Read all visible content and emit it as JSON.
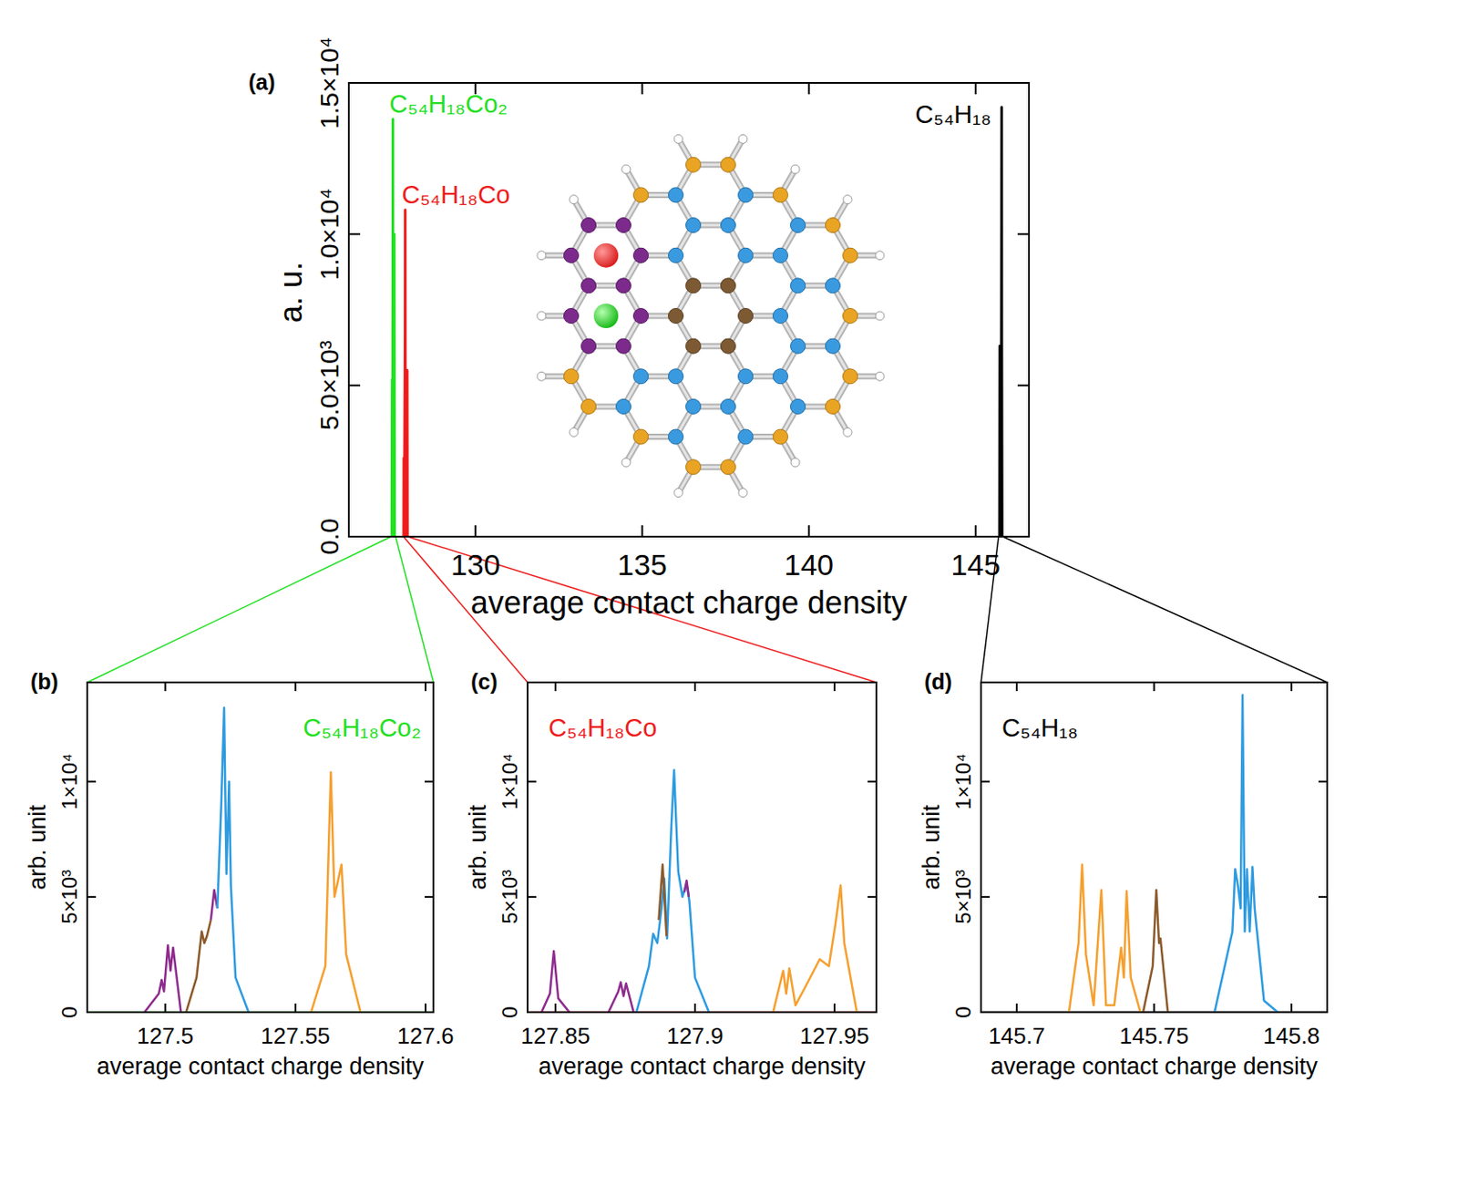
{
  "chart_data": [
    {
      "type": "line",
      "label": "(a)",
      "xlabel": "average contact charge density",
      "ylabel": "a. u.",
      "xlim": [
        126.2,
        146.6
      ],
      "ylim": [
        0,
        15000
      ],
      "xticks": [
        130,
        135,
        140,
        145
      ],
      "yticks": [
        {
          "value": 0,
          "label": "0.0"
        },
        {
          "value": 5000,
          "label": "5.0×10³"
        },
        {
          "value": 10000,
          "label": "1.0×10⁴"
        },
        {
          "value": 15000,
          "label": "1.5×10⁴"
        }
      ],
      "series": [
        {
          "name": "C₅₄H₁₈Co₂",
          "color": "#22e022",
          "x": [
            127.49,
            127.5,
            127.51,
            127.515,
            127.52,
            127.5226,
            127.53,
            127.556,
            127.5636,
            127.5677,
            127.575
          ],
          "values": [
            0,
            5200,
            1000,
            5000,
            9000,
            13800,
            500,
            0,
            10000,
            6000,
            0
          ]
        },
        {
          "name": "C₅₄H₁₈Co",
          "color": "#ee1c1c",
          "x": [
            127.845,
            127.8494,
            127.86,
            127.8884,
            127.8925,
            127.897,
            127.91,
            127.945,
            127.9522,
            127.96
          ],
          "values": [
            0,
            2600,
            0,
            6700,
            10800,
            5500,
            0,
            2000,
            5500,
            0
          ]
        },
        {
          "name": "C₅₄H₁₈",
          "color": "#000000",
          "x": [
            145.715,
            145.7238,
            145.74,
            145.76,
            145.7822,
            145.785,
            145.795
          ],
          "values": [
            0,
            6300,
            5000,
            0,
            14200,
            6500,
            0
          ]
        }
      ]
    },
    {
      "type": "line",
      "label": "(b)",
      "title": "C₅₄H₁₈Co₂",
      "xlabel": "average contact charge density",
      "ylabel": "arb. unit",
      "xlim": [
        127.47,
        127.603
      ],
      "ylim": [
        0,
        14300
      ],
      "xticks": [
        127.5,
        127.55,
        127.6
      ],
      "yticks": [
        0,
        {
          "value": 5000,
          "label": "5×10³"
        },
        {
          "value": 10000,
          "label": "1×10⁴"
        }
      ],
      "series": [
        {
          "color": "#22e022",
          "x": [
            127.47,
            127.603
          ],
          "values": [
            0,
            0
          ]
        },
        {
          "color": "#8e2c8e",
          "x": [
            127.492,
            127.4975,
            127.4986,
            127.4995,
            127.501,
            127.502,
            127.503,
            127.506
          ],
          "values": [
            0,
            800,
            1400,
            900,
            2900,
            1800,
            2800,
            0
          ]
        },
        {
          "color": "#8b5a2b",
          "x": [
            127.508,
            127.512,
            127.514,
            127.515,
            127.516,
            127.5175
          ],
          "values": [
            0,
            1500,
            3500,
            3000,
            3300,
            4000
          ]
        },
        {
          "color": "#8e2c8e",
          "x": [
            127.5175,
            127.5188,
            127.52
          ],
          "values": [
            4000,
            5300,
            4500
          ]
        },
        {
          "color": "#2e9be0",
          "x": [
            127.52,
            127.5215,
            127.5226,
            127.5235,
            127.5245,
            127.5252,
            127.527,
            127.532
          ],
          "values": [
            4500,
            9000,
            13200,
            6000,
            10000,
            5500,
            1500,
            0
          ]
        },
        {
          "color": "#f5a030",
          "x": [
            127.556,
            127.5615,
            127.5636,
            127.565,
            127.5677,
            127.5695,
            127.575
          ],
          "values": [
            0,
            2000,
            10400,
            5000,
            6400,
            2500,
            0
          ]
        }
      ]
    },
    {
      "type": "line",
      "label": "(c)",
      "title": "C₅₄H₁₈Co",
      "xlabel": "average contact charge density",
      "ylabel": "arb. unit",
      "xlim": [
        127.84,
        127.965
      ],
      "ylim": [
        0,
        14300
      ],
      "xticks": [
        127.85,
        127.9,
        127.95
      ],
      "yticks": [
        0,
        {
          "value": 5000,
          "label": "5×10³"
        },
        {
          "value": 10000,
          "label": "1×10⁴"
        }
      ],
      "series": [
        {
          "color": "#ee1c1c",
          "x": [
            127.84,
            127.965
          ],
          "values": [
            0,
            0
          ]
        },
        {
          "color": "#8e2c8e",
          "x": [
            127.845,
            127.848,
            127.8494,
            127.851,
            127.855
          ],
          "values": [
            0,
            800,
            2650,
            600,
            0
          ]
        },
        {
          "color": "#8e2c8e",
          "x": [
            127.869,
            127.8725,
            127.8734,
            127.8744,
            127.8753,
            127.878
          ],
          "values": [
            0,
            900,
            1300,
            700,
            1250,
            0
          ]
        },
        {
          "color": "#2e9be0",
          "x": [
            127.879,
            127.8835,
            127.885,
            127.8865,
            127.888,
            127.889,
            127.89,
            127.8915,
            127.8925,
            127.894,
            127.8955,
            127.897,
            127.898,
            127.9,
            127.905
          ],
          "values": [
            0,
            2000,
            3400,
            3000,
            4500,
            5800,
            3200,
            8000,
            10500,
            6100,
            5000,
            5600,
            4800,
            1500,
            0
          ]
        },
        {
          "color": "#8b5a2b",
          "x": [
            127.887,
            127.8884,
            127.8898
          ],
          "values": [
            4000,
            6400,
            3300
          ]
        },
        {
          "color": "#8e2c8e",
          "x": [
            127.8962,
            127.897,
            127.8978
          ],
          "values": [
            5200,
            5700,
            5000
          ]
        },
        {
          "color": "#f5a030",
          "x": [
            127.928,
            127.9316,
            127.9327,
            127.9338,
            127.936,
            127.94,
            127.9447,
            127.948,
            127.9503,
            127.9522,
            127.9535,
            127.958
          ],
          "values": [
            0,
            1800,
            800,
            1900,
            300,
            1200,
            2300,
            2000,
            3800,
            5500,
            3000,
            0
          ]
        }
      ]
    },
    {
      "type": "line",
      "label": "(d)",
      "title": "C₅₄H₁₈",
      "xlabel": "average contact charge density",
      "ylabel": "arb. unit",
      "xlim": [
        145.687,
        145.813
      ],
      "ylim": [
        0,
        14300
      ],
      "xticks": [
        145.7,
        145.75,
        145.8
      ],
      "yticks": [
        0,
        {
          "value": 5000,
          "label": "5×10³"
        },
        {
          "value": 10000,
          "label": "1×10⁴"
        }
      ],
      "series": [
        {
          "color": "#000000",
          "x": [
            145.687,
            145.813
          ],
          "values": [
            0,
            0
          ]
        },
        {
          "color": "#f5a030",
          "x": [
            145.719,
            145.7225,
            145.7238,
            145.7252,
            145.728,
            145.7308,
            145.7325,
            145.7355,
            145.738,
            145.739,
            145.74,
            145.7415,
            145.745
          ],
          "values": [
            0,
            3000,
            6400,
            2500,
            300,
            5300,
            300,
            300,
            2800,
            1500,
            5250,
            1500,
            0
          ]
        },
        {
          "color": "#8b5a2b",
          "x": [
            145.746,
            145.7495,
            145.7508,
            145.7518,
            145.7523,
            145.755
          ],
          "values": [
            0,
            2000,
            5300,
            3000,
            3200,
            0
          ]
        },
        {
          "color": "#2e9be0",
          "x": [
            145.772,
            145.7785,
            145.7795,
            145.7805,
            145.7815,
            145.7822,
            145.783,
            145.7838,
            145.7848,
            145.7858,
            145.7866,
            145.79,
            145.795
          ],
          "values": [
            0,
            3500,
            6200,
            5500,
            4500,
            13750,
            3500,
            6200,
            3500,
            6300,
            4500,
            500,
            0
          ]
        }
      ]
    }
  ]
}
